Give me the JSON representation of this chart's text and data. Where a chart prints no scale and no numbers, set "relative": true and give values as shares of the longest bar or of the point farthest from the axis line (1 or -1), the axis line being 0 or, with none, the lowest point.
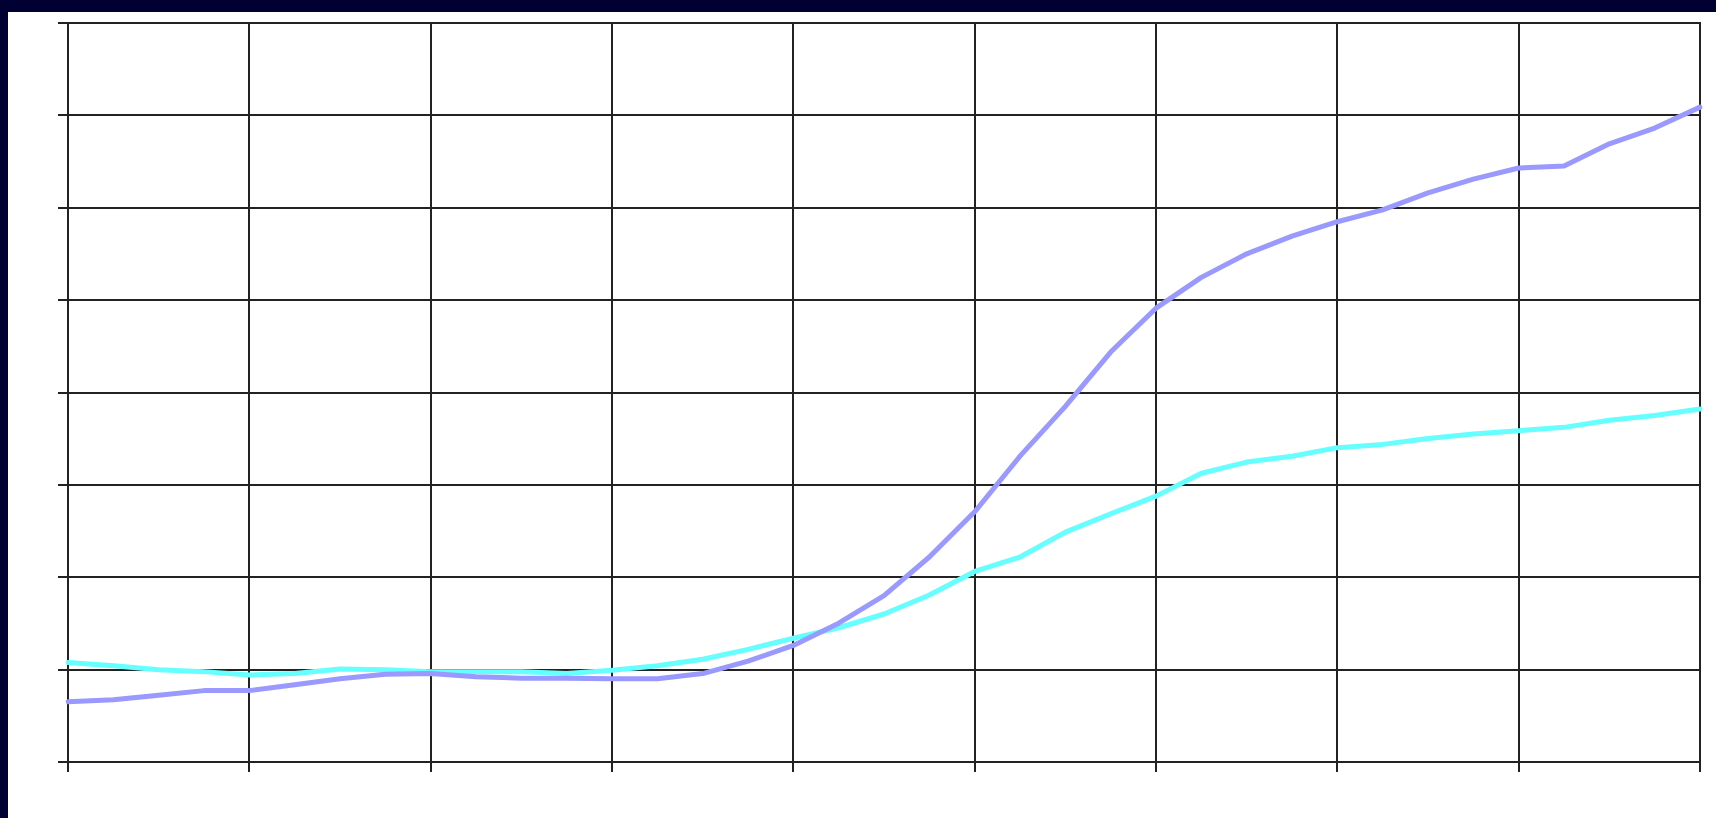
{
  "chart_data": {
    "type": "line",
    "relative": true,
    "grid": true,
    "legend": false,
    "marker": "none",
    "line_style": "solid",
    "categories": [
      null,
      null,
      null,
      null,
      null,
      null,
      null,
      null,
      null,
      null,
      null,
      null,
      null,
      null,
      null,
      null,
      null,
      null,
      null,
      null,
      null,
      null,
      null,
      null,
      null,
      null,
      null,
      null,
      null,
      null,
      null,
      null,
      null,
      null,
      null,
      null,
      null
    ],
    "series": [
      {
        "color": "#9999ff",
        "values": [
          0.092,
          0.095,
          0.102,
          0.109,
          0.109,
          0.118,
          0.127,
          0.134,
          0.135,
          0.13,
          0.128,
          0.128,
          0.127,
          0.127,
          0.135,
          0.154,
          0.178,
          0.212,
          0.254,
          0.313,
          0.382,
          0.467,
          0.543,
          0.626,
          0.693,
          0.74,
          0.776,
          0.803,
          0.825,
          0.843,
          0.869,
          0.89,
          0.907,
          0.91,
          0.944,
          0.968,
          1
        ]
      },
      {
        "color": "#66ffff",
        "values": [
          0.152,
          0.147,
          0.141,
          0.138,
          0.133,
          0.135,
          0.142,
          0.141,
          0.138,
          0.138,
          0.138,
          0.135,
          0.14,
          0.147,
          0.157,
          0.172,
          0.189,
          0.205,
          0.226,
          0.255,
          0.291,
          0.313,
          0.351,
          0.379,
          0.406,
          0.441,
          0.458,
          0.467,
          0.48,
          0.485,
          0.494,
          0.501,
          0.506,
          0.511,
          0.522,
          0.529,
          0.539
        ]
      }
    ]
  }
}
